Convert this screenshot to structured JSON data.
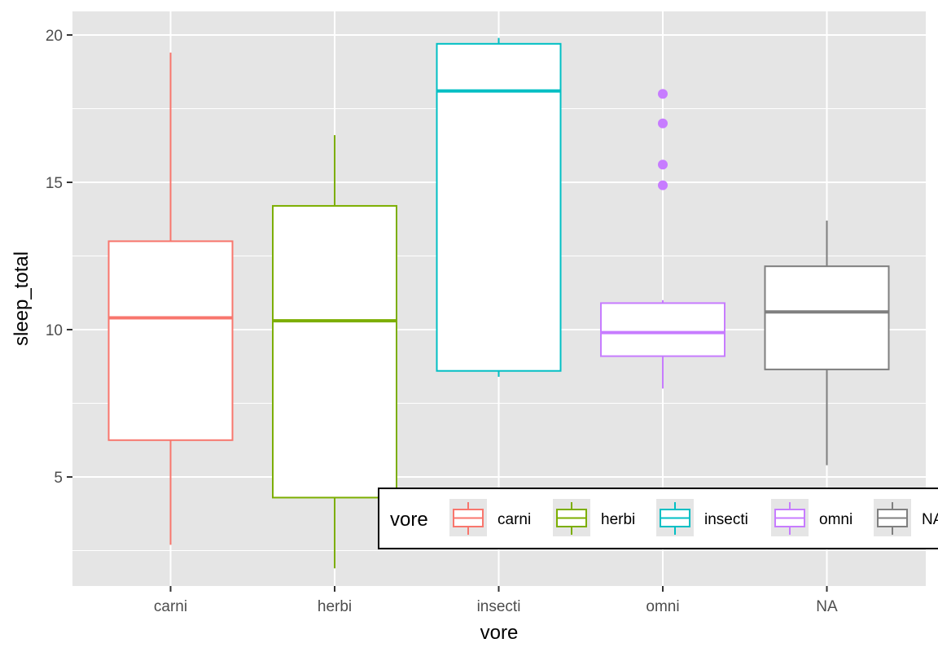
{
  "chart_data": {
    "type": "box",
    "title": "",
    "xlabel": "vore",
    "ylabel": "sleep_total",
    "categories": [
      "carni",
      "herbi",
      "insecti",
      "omni",
      "NA"
    ],
    "ylim": [
      1.3,
      20.8
    ],
    "yticks": [
      5,
      10,
      15,
      20
    ],
    "grid": true,
    "panel_background": "#e5e5e5",
    "grid_color": "#ffffff",
    "legend": {
      "title": "vore",
      "position": "bottom-right (inside plot, horizontal)",
      "entries": [
        "carni",
        "herbi",
        "insecti",
        "omni",
        "NA"
      ]
    },
    "series": [
      {
        "category": "carni",
        "color": "#f8766d",
        "whisker_low": 2.7,
        "q1": 6.25,
        "median": 10.4,
        "q3": 13.0,
        "whisker_high": 19.4,
        "outliers": []
      },
      {
        "category": "herbi",
        "color": "#7cae00",
        "whisker_low": 1.9,
        "q1": 4.3,
        "median": 10.3,
        "q3": 14.2,
        "whisker_high": 16.6,
        "outliers": []
      },
      {
        "category": "insecti",
        "color": "#00bfc4",
        "whisker_low": 8.4,
        "q1": 8.6,
        "median": 18.1,
        "q3": 19.7,
        "whisker_high": 19.9,
        "outliers": []
      },
      {
        "category": "omni",
        "color": "#c77cff",
        "whisker_low": 8.0,
        "q1": 9.1,
        "median": 9.9,
        "q3": 10.9,
        "whisker_high": 11.0,
        "outliers": [
          14.9,
          15.6,
          17.0,
          18.0
        ]
      },
      {
        "category": "NA",
        "color": "#7f7f7f",
        "whisker_low": 5.4,
        "q1": 8.65,
        "median": 10.6,
        "q3": 12.15,
        "whisker_high": 13.7,
        "outliers": []
      }
    ]
  }
}
